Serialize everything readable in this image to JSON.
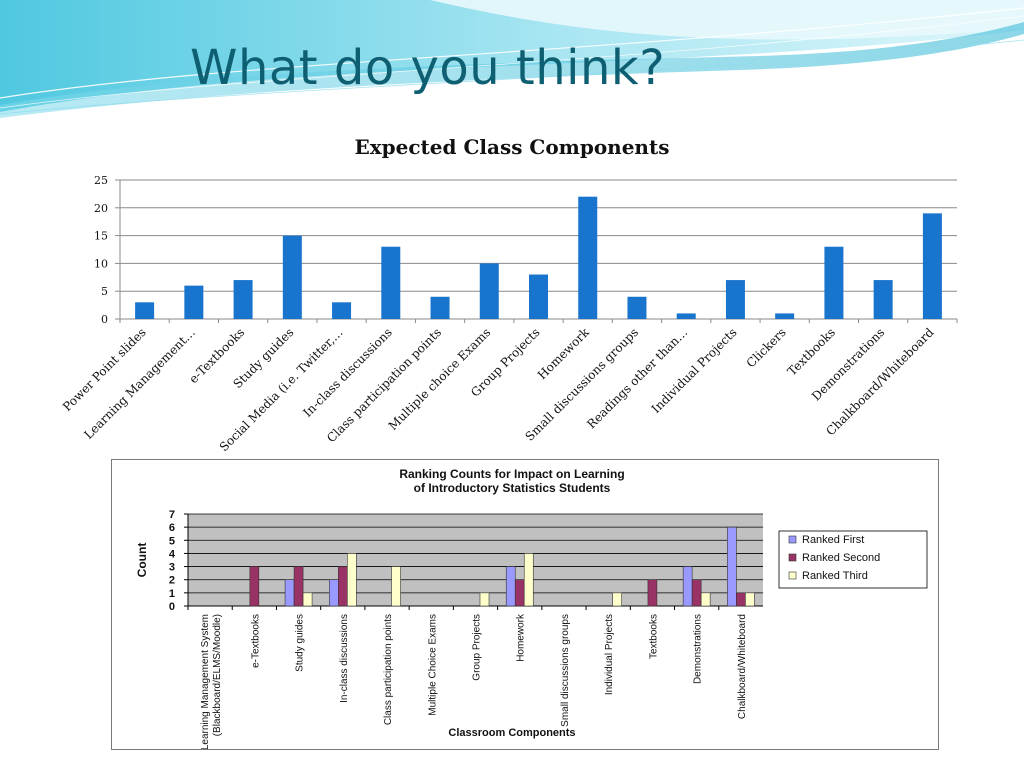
{
  "slide": {
    "title": "What do you think?"
  },
  "colors": {
    "title": "#0e5f72",
    "bar_blue": "#1874cd",
    "ranked_first": "#9999ff",
    "ranked_second": "#993366",
    "ranked_third": "#ffffcc",
    "plot_area_gray": "#c0c0c0"
  },
  "chart_data": [
    {
      "type": "bar",
      "title": "Expected Class Components",
      "xlabel": "",
      "ylabel": "",
      "categories": [
        "Power Point slides",
        "Learning Management…",
        "e-Textbooks",
        "Study guides",
        "Social Media (i.e. Twitter,…",
        "In-class discussions",
        "Class participation points",
        "Multiple choice Exams",
        "Group Projects",
        "Homework",
        "Small discussions groups",
        "Readings other than…",
        "Individual Projects",
        "Clickers",
        "Textbooks",
        "Demonstrations",
        "Chalkboard/Whiteboard"
      ],
      "values": [
        3,
        6,
        7,
        15,
        3,
        13,
        4,
        10,
        8,
        22,
        4,
        1,
        7,
        1,
        13,
        7,
        19
      ],
      "ylim": [
        0,
        25
      ],
      "yticks": [
        0,
        5,
        10,
        15,
        20,
        25
      ],
      "grid": true,
      "legend": "none"
    },
    {
      "type": "bar",
      "title": "Ranking Counts for Impact on Learning of Introductory Statistics  Students",
      "title_lines": [
        "Ranking Counts for Impact on Learning",
        "of Introductory Statistics  Students"
      ],
      "xlabel": "Classroom  Components",
      "ylabel": "Count",
      "categories": [
        "Learning Management System (Blackboard/ELMS/Moodle)",
        "e-Textbooks",
        "Study guides",
        "In-class discussions",
        "Class participation points",
        "Multiple Choice Exams",
        "Group Projects",
        "Homework",
        "Small discussions groups",
        "Individual Projects",
        "Textbooks",
        "Demonstrations",
        "Chalkboard/Whiteboard"
      ],
      "category_lines": [
        [
          "Learning Management System",
          "(Blackboard/ELMS/Moodle)"
        ],
        [
          "e-Textbooks"
        ],
        [
          "Study guides"
        ],
        [
          "In-class discussions"
        ],
        [
          "Class participation points"
        ],
        [
          "Multiple Choice Exams"
        ],
        [
          "Group Projects"
        ],
        [
          "Homework"
        ],
        [
          "Small discussions groups"
        ],
        [
          "Individual Projects"
        ],
        [
          "Textbooks"
        ],
        [
          "Demonstrations"
        ],
        [
          "Chalkboard/Whiteboard"
        ]
      ],
      "series": [
        {
          "name": "Ranked First",
          "values": [
            0,
            0,
            2,
            2,
            0,
            0,
            0,
            3,
            0,
            0,
            0,
            3,
            6
          ]
        },
        {
          "name": "Ranked Second",
          "values": [
            0,
            3,
            3,
            3,
            0,
            0,
            0,
            2,
            0,
            0,
            2,
            2,
            1
          ]
        },
        {
          "name": "Ranked Third",
          "values": [
            0,
            0,
            1,
            4,
            3,
            0,
            1,
            4,
            0,
            1,
            0,
            1,
            1
          ]
        }
      ],
      "ylim": [
        0,
        7
      ],
      "yticks": [
        0,
        1,
        2,
        3,
        4,
        5,
        6,
        7
      ],
      "grid": true,
      "legend": "right"
    }
  ]
}
